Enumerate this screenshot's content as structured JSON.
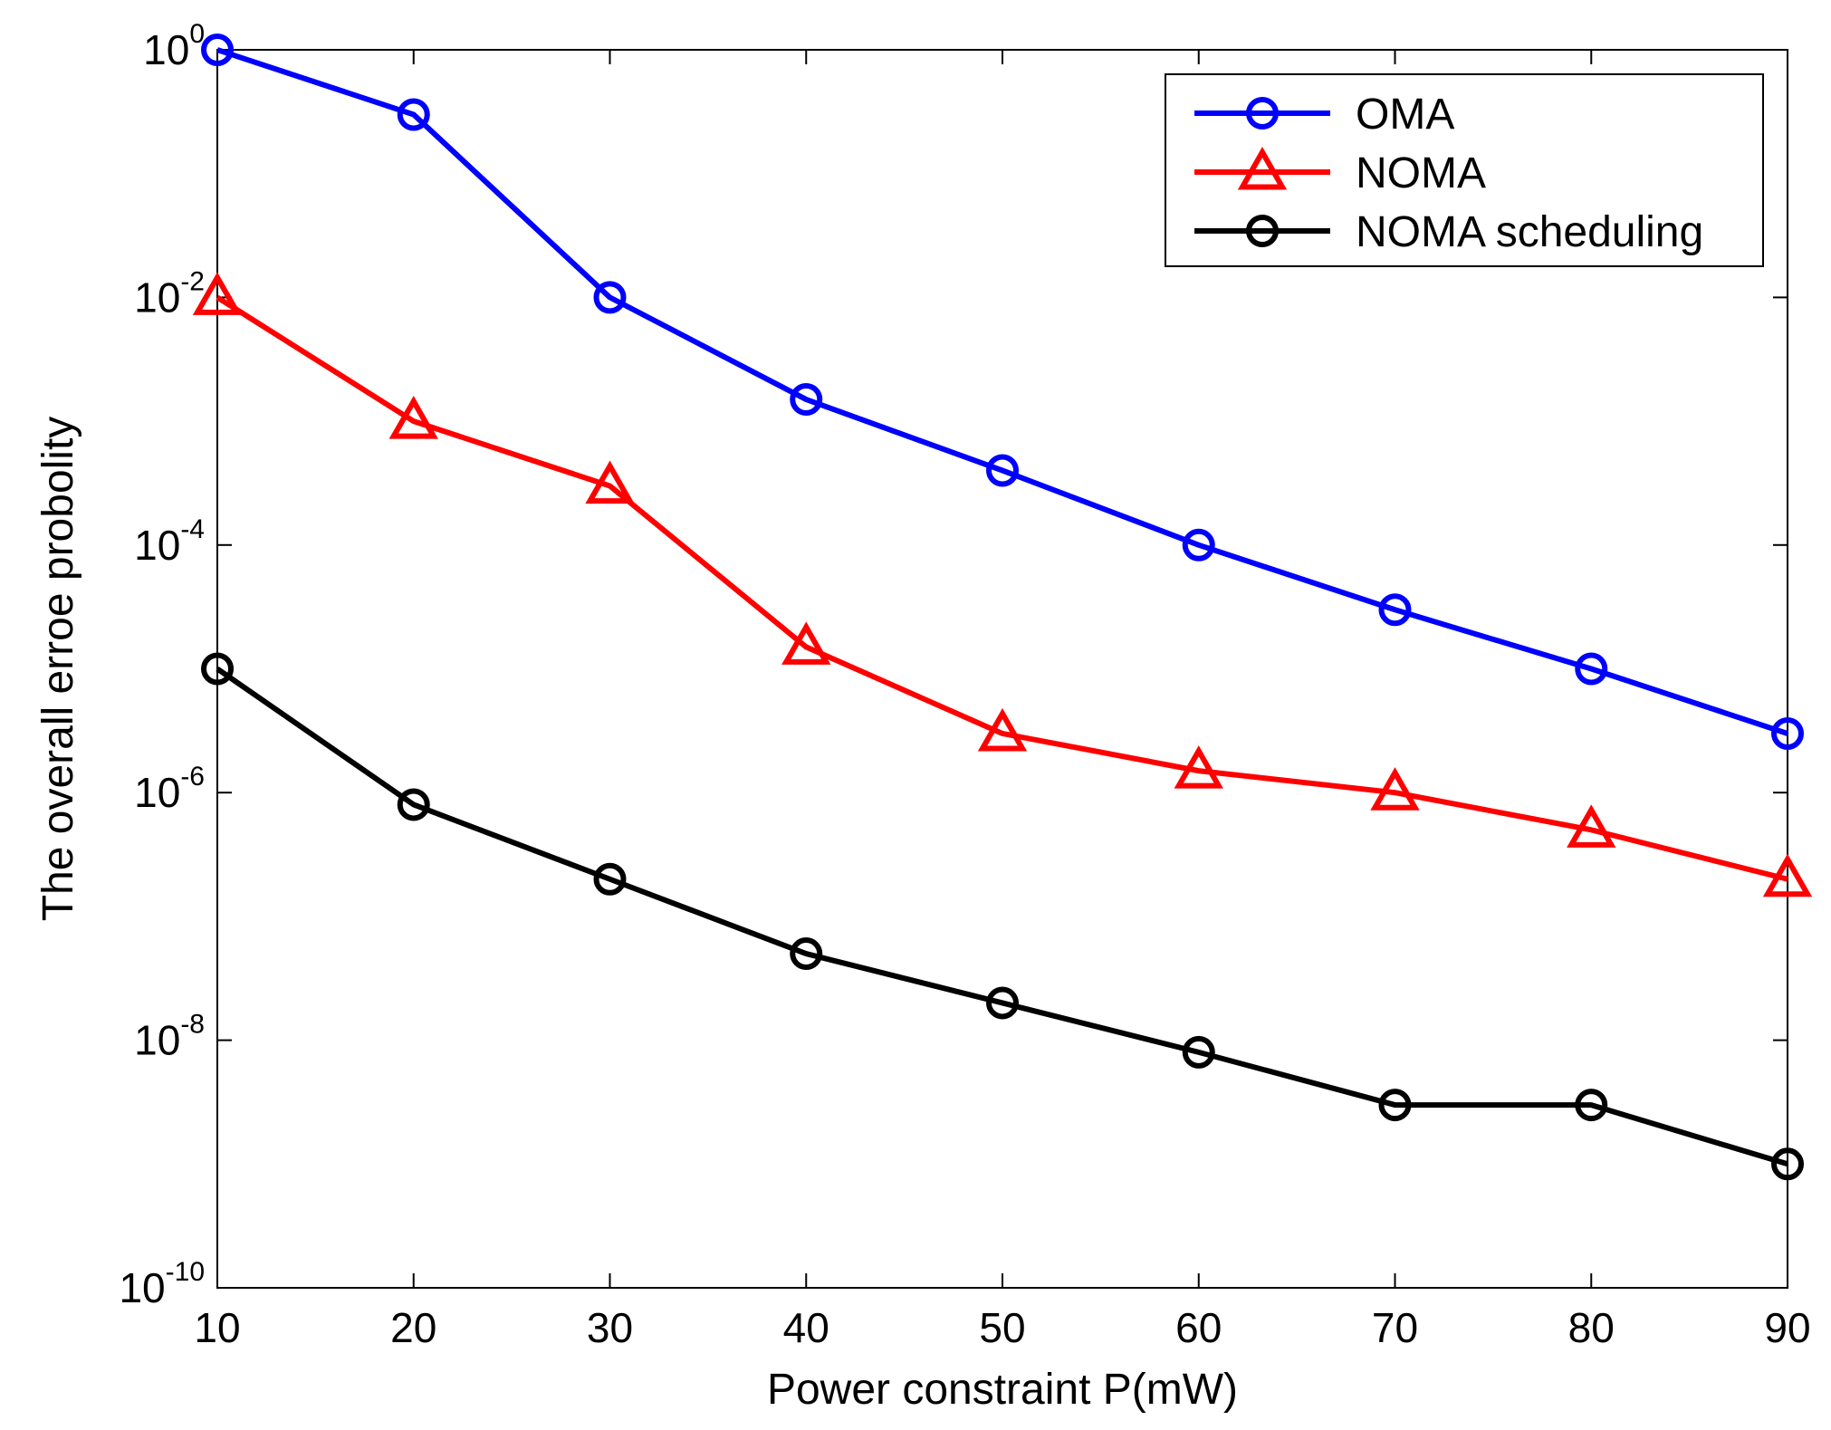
{
  "chart_data": {
    "type": "line",
    "title": "",
    "xlabel": "Power constraint P(mW)",
    "ylabel": "The overall erroe probolity",
    "x": [
      10,
      20,
      30,
      40,
      50,
      60,
      70,
      80,
      90
    ],
    "xlim": [
      10,
      90
    ],
    "xticks": [
      10,
      20,
      30,
      40,
      50,
      60,
      70,
      80,
      90
    ],
    "yscale": "log",
    "ylim": [
      1e-10,
      1
    ],
    "yticks": [
      {
        "base": "10",
        "exp": "0",
        "value": 1
      },
      {
        "base": "10",
        "exp": "-2",
        "value": 0.01
      },
      {
        "base": "10",
        "exp": "-4",
        "value": 0.0001
      },
      {
        "base": "10",
        "exp": "-6",
        "value": 1e-06
      },
      {
        "base": "10",
        "exp": "-8",
        "value": 1e-08
      },
      {
        "base": "10",
        "exp": "-10",
        "value": 1e-10
      }
    ],
    "grid": false,
    "legend_position": "top-right",
    "series": [
      {
        "name": "OMA",
        "color": "#0000ff",
        "marker": "circle",
        "values": [
          1,
          0.3,
          0.01,
          0.0015,
          0.0004,
          0.0001,
          3e-05,
          1e-05,
          3e-06
        ]
      },
      {
        "name": "NOMA",
        "color": "#ff0000",
        "marker": "triangle",
        "values": [
          0.01,
          0.001,
          0.0003,
          1.5e-05,
          3e-06,
          1.5e-06,
          1e-06,
          5e-07,
          2e-07
        ]
      },
      {
        "name": "NOMA scheduling",
        "color": "#000000",
        "marker": "circle",
        "values": [
          1e-05,
          8e-07,
          2e-07,
          5e-08,
          2e-08,
          8e-09,
          3e-09,
          3e-09,
          1e-09
        ]
      }
    ]
  }
}
